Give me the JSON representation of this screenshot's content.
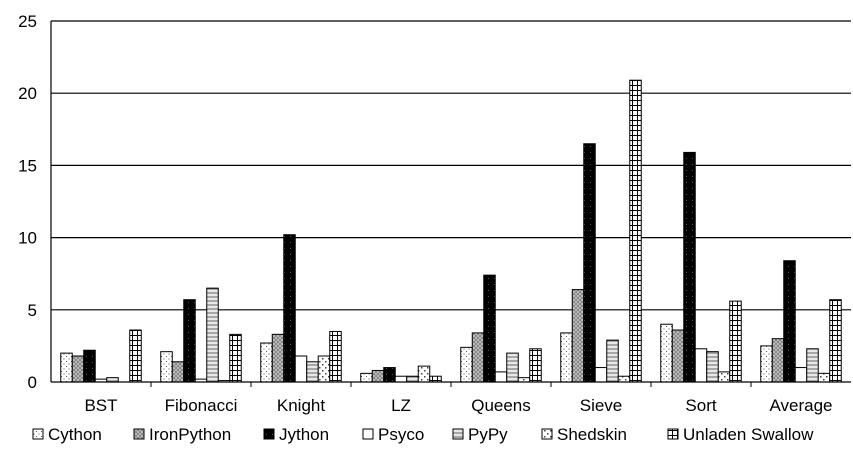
{
  "chart_data": {
    "type": "bar",
    "categories": [
      "BST",
      "Fibonacci",
      "Knight",
      "LZ",
      "Queens",
      "Sieve",
      "Sort",
      "Average"
    ],
    "ylim": [
      0,
      25
    ],
    "yticks": [
      0,
      5,
      10,
      15,
      20,
      25
    ],
    "grid": "horizontal",
    "legend_position": "bottom",
    "series": [
      {
        "name": "Cython",
        "pattern": "dots-light",
        "values": [
          2.0,
          2.1,
          2.7,
          0.6,
          2.4,
          3.4,
          4.0,
          2.5
        ]
      },
      {
        "name": "IronPython",
        "pattern": "crosshatch-gray",
        "values": [
          1.8,
          1.4,
          3.3,
          0.8,
          3.4,
          6.4,
          3.6,
          3.0
        ]
      },
      {
        "name": "Jython",
        "pattern": "solid-black",
        "values": [
          2.2,
          5.7,
          10.2,
          1.0,
          7.4,
          16.5,
          15.9,
          8.4
        ]
      },
      {
        "name": "Psyco",
        "pattern": "white",
        "values": [
          0.2,
          0.2,
          1.8,
          0.4,
          0.7,
          1.0,
          2.3,
          1.0
        ]
      },
      {
        "name": "PyPy",
        "pattern": "horizontal-lines",
        "values": [
          0.3,
          6.5,
          1.4,
          0.4,
          2.0,
          2.9,
          2.1,
          2.3
        ]
      },
      {
        "name": "Shedskin",
        "pattern": "dots-sparse",
        "values": [
          0.0,
          0.1,
          1.8,
          1.1,
          0.3,
          0.4,
          0.7,
          0.6
        ]
      },
      {
        "name": "Unladen Swallow",
        "pattern": "grid",
        "values": [
          3.6,
          3.3,
          3.5,
          0.4,
          2.3,
          20.9,
          5.6,
          5.7
        ]
      }
    ]
  }
}
